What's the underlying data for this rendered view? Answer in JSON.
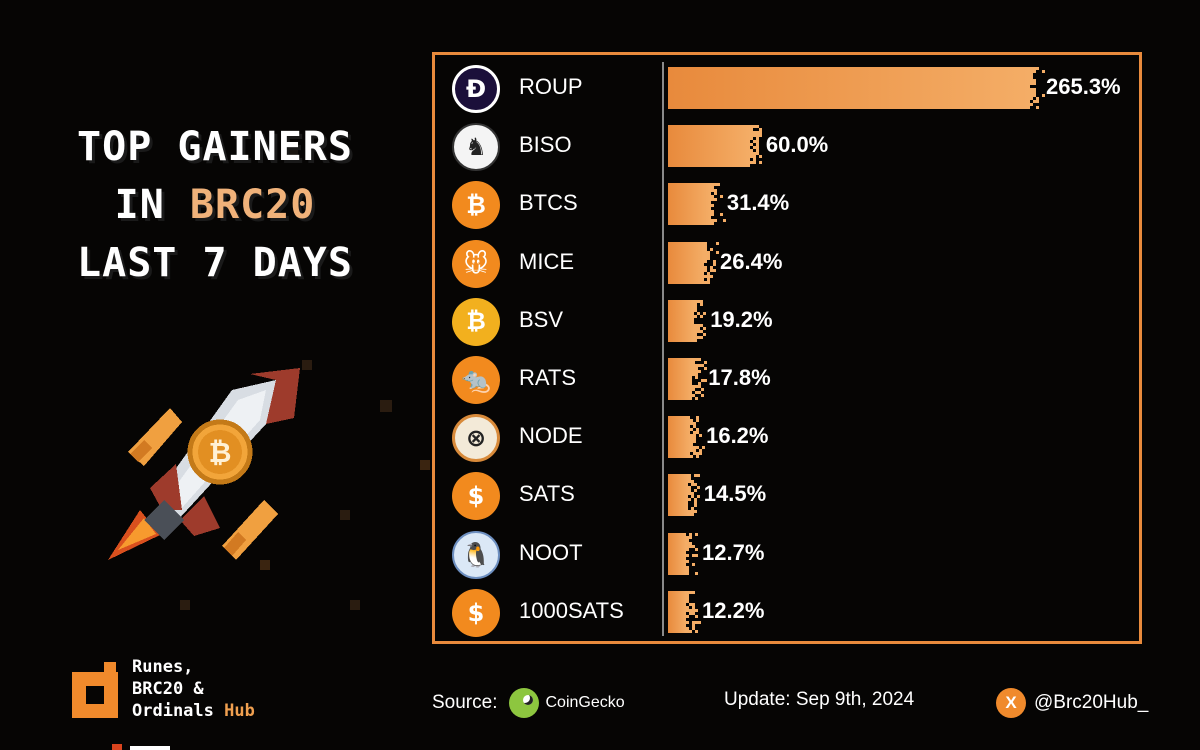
{
  "title": {
    "line1": "TOP GAINERS",
    "line2_prefix": "IN ",
    "line2_accent": "BRC20",
    "line3": "LAST 7 DAYS"
  },
  "chart_data": {
    "type": "bar",
    "orientation": "horizontal",
    "categories": [
      "ROUP",
      "BISO",
      "BTCS",
      "MICE",
      "BSV",
      "RATS",
      "NODE",
      "SATS",
      "NOOT",
      "1000SATS"
    ],
    "values": [
      265.3,
      60.0,
      31.4,
      26.4,
      19.2,
      17.8,
      16.2,
      14.5,
      12.7,
      12.2
    ],
    "value_labels": [
      "265.3%",
      "60.0%",
      "31.4%",
      "26.4%",
      "19.2%",
      "17.8%",
      "16.2%",
      "14.5%",
      "12.7%",
      "12.2%"
    ],
    "icons": [
      "roup-icon",
      "biso-icon",
      "btcs-icon",
      "mice-icon",
      "bsv-icon",
      "rats-icon",
      "node-icon",
      "sats-icon",
      "noot-icon",
      "1000sats-icon"
    ],
    "bar_color": "#e88a3c",
    "grid": false
  },
  "footer": {
    "brand_line1": "Runes,",
    "brand_line2": "BRC20 &",
    "brand_line3_prefix": "Ordinals ",
    "brand_line3_accent": "Hub",
    "source_label": "Source:",
    "source_name": "CoinGecko",
    "update": "Update: Sep 9th, 2024",
    "handle": "@Brc20Hub_"
  },
  "colors": {
    "accent": "#e88a3c",
    "background": "#060504",
    "title_accent": "#f0b27a"
  }
}
